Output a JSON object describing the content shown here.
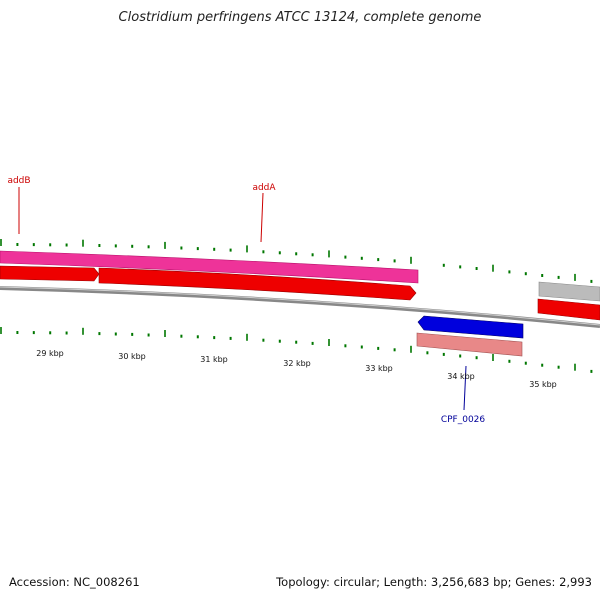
{
  "header": {
    "title": "Clostridium perfringens ATCC 13124, complete genome"
  },
  "footer": {
    "accession": "Accession: NC_008261",
    "summary": "Topology: circular; Length: 3,256,683 bp; Genes: 2,993"
  },
  "colors": {
    "backbone": "#888888",
    "cds_forward": "#ee0000",
    "cds_reverse": "#0000dd",
    "gene_magenta": "#ee3399",
    "gene_pink": "#e88888",
    "gene_gray": "#bbbbbb",
    "tick": "#007700",
    "label_red": "#cc0000",
    "label_blue": "#000099"
  },
  "ruler": {
    "tick_labels": [
      "29 kbp",
      "30 kbp",
      "31 kbp",
      "32 kbp",
      "33 kbp",
      "34 kbp",
      "35 kbp"
    ]
  },
  "gene_labels": [
    {
      "name": "addB"
    },
    {
      "name": "addA"
    },
    {
      "name": "CPF_0026"
    }
  ]
}
